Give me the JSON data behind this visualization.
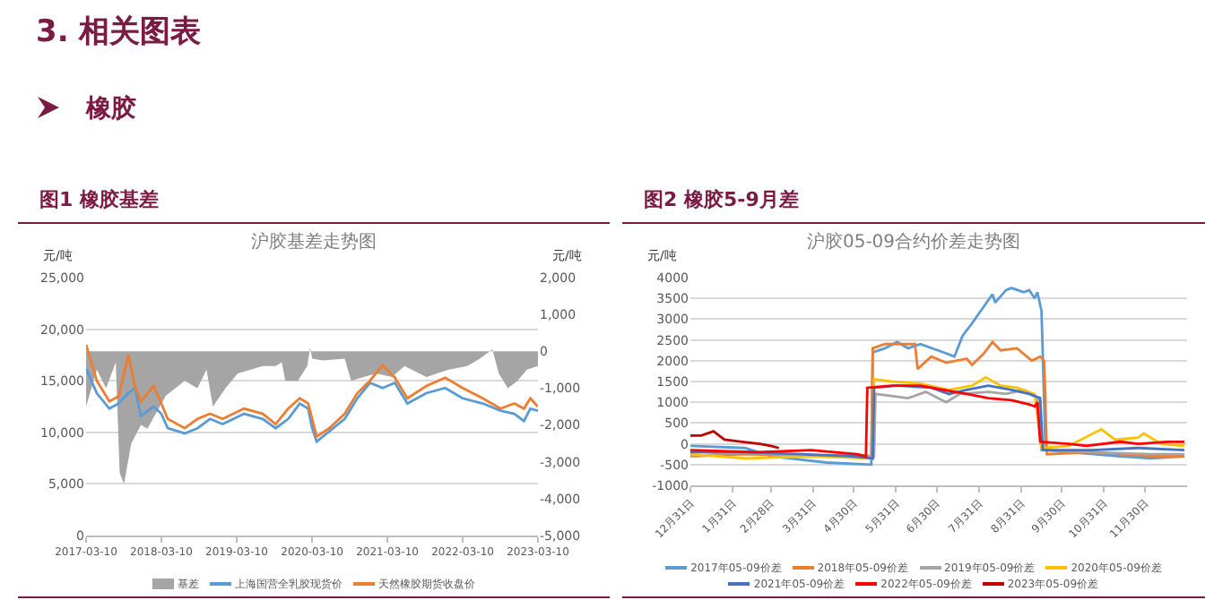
{
  "chart_data": [
    {
      "type": "line",
      "title": "沪胶基差走势图",
      "ylabel": "元/吨",
      "y2label": "元/吨",
      "annotations": [
        "3. 相关图表",
        "橡胶",
        "图1 橡胶基差"
      ],
      "xlim": [
        "2017-03-10",
        "2023-03-10"
      ],
      "xticks": [
        "2017-03-10",
        "2018-03-10",
        "2019-03-10",
        "2020-03-10",
        "2021-03-10",
        "2022-03-10",
        "2023-03-10"
      ],
      "ylim": [
        0,
        25000
      ],
      "yticks": [
        0,
        {
          "value": 5000,
          "label": "5,000"
        },
        {
          "value": 10000,
          "label": "10,000"
        },
        {
          "value": 15000,
          "label": "15,000"
        },
        {
          "value": 20000,
          "label": "20,000"
        },
        {
          "value": 25000,
          "label": "25,000"
        }
      ],
      "y2lim": [
        -5000,
        2000
      ],
      "y2ticks": [
        {
          "value": -5000,
          "label": "-5,000"
        },
        {
          "value": -4000,
          "label": "-4,000"
        },
        {
          "value": -3000,
          "label": "-3,000"
        },
        {
          "value": -2000,
          "label": "-2,000"
        },
        {
          "value": -1000,
          "label": "-1,000"
        },
        0,
        {
          "value": 1000,
          "label": "1,000"
        },
        {
          "value": 2000,
          "label": "2,000"
        }
      ],
      "grid": "y",
      "legend": "bottom",
      "series": [
        {
          "name": "基差",
          "type": "area",
          "axis": "y2",
          "color": "#a5a5a5",
          "x": [
            "2017-03-10",
            "2017-05-01",
            "2017-06-15",
            "2017-08-01",
            "2017-08-20",
            "2017-09-10",
            "2017-10-15",
            "2017-12-01",
            "2018-01-01",
            "2018-04-01",
            "2018-07-01",
            "2018-09-01",
            "2018-10-15",
            "2018-11-15",
            "2019-01-15",
            "2019-03-15",
            "2019-07-15",
            "2019-09-15",
            "2019-10-15",
            "2019-11-01",
            "2020-01-01",
            "2020-02-15",
            "2020-03-01",
            "2020-03-10",
            "2020-05-01",
            "2020-08-15",
            "2020-09-15",
            "2020-11-15",
            "2021-01-15",
            "2021-04-01",
            "2021-06-01",
            "2021-09-15",
            "2022-01-01",
            "2022-04-01",
            "2022-06-01",
            "2022-08-01",
            "2022-09-01",
            "2022-10-15",
            "2022-12-01",
            "2023-01-15",
            "2023-03-10"
          ],
          "values": [
            -1500,
            -500,
            -1000,
            -300,
            -3300,
            -3600,
            -2500,
            -2000,
            -2100,
            -1200,
            -800,
            -1000,
            -500,
            -1500,
            -1000,
            -600,
            -400,
            -400,
            -300,
            -800,
            -800,
            -400,
            100,
            -200,
            -250,
            -200,
            -800,
            -700,
            -600,
            -700,
            -400,
            -700,
            -500,
            -400,
            -200,
            50,
            -600,
            -1000,
            -800,
            -500,
            -400
          ]
        },
        {
          "name": "上海国营全乳胶现货价",
          "color": "#5b9bd5",
          "x": [
            "2017-03-10",
            "2017-05-01",
            "2017-07-01",
            "2017-08-15",
            "2017-10-01",
            "2017-11-01",
            "2017-12-01",
            "2018-02-01",
            "2018-03-10",
            "2018-04-10",
            "2018-07-01",
            "2018-09-01",
            "2018-11-01",
            "2019-01-01",
            "2019-04-15",
            "2019-07-15",
            "2019-09-15",
            "2019-11-15",
            "2020-01-10",
            "2020-02-20",
            "2020-03-10",
            "2020-04-01",
            "2020-06-01",
            "2020-08-15",
            "2020-10-15",
            "2020-12-15",
            "2021-02-15",
            "2021-04-15",
            "2021-06-15",
            "2021-09-15",
            "2021-12-15",
            "2022-03-10",
            "2022-06-15",
            "2022-09-10",
            "2022-11-15",
            "2023-01-01",
            "2023-02-01",
            "2023-03-10"
          ],
          "values": [
            16200,
            13800,
            12300,
            12800,
            13800,
            14300,
            11600,
            12500,
            11800,
            10400,
            9900,
            10400,
            11300,
            10800,
            11800,
            11300,
            10400,
            11300,
            12800,
            12300,
            10400,
            9100,
            10100,
            11300,
            13300,
            14800,
            14300,
            14800,
            12800,
            13800,
            14300,
            13300,
            12800,
            12100,
            11800,
            11100,
            12300,
            12100
          ]
        },
        {
          "name": "天然橡胶期货收盘价",
          "color": "#ed7d31",
          "x": [
            "2017-03-10",
            "2017-05-01",
            "2017-07-01",
            "2017-08-15",
            "2017-10-01",
            "2017-11-01",
            "2017-12-01",
            "2018-02-01",
            "2018-03-10",
            "2018-04-10",
            "2018-07-01",
            "2018-09-01",
            "2018-11-01",
            "2019-01-01",
            "2019-04-15",
            "2019-07-15",
            "2019-09-15",
            "2019-11-15",
            "2020-01-10",
            "2020-02-20",
            "2020-03-10",
            "2020-04-01",
            "2020-06-01",
            "2020-08-15",
            "2020-10-15",
            "2020-12-15",
            "2021-02-15",
            "2021-04-15",
            "2021-06-15",
            "2021-09-15",
            "2021-12-15",
            "2022-03-10",
            "2022-06-15",
            "2022-09-10",
            "2022-11-15",
            "2023-01-01",
            "2023-02-01",
            "2023-03-10"
          ],
          "values": [
            18500,
            15000,
            13000,
            13500,
            17500,
            14500,
            13000,
            14500,
            12800,
            11300,
            10400,
            11300,
            11800,
            11300,
            12300,
            11800,
            10800,
            12300,
            13300,
            12800,
            11300,
            9600,
            10400,
            11800,
            13800,
            15000,
            16500,
            15300,
            13300,
            14500,
            15300,
            14300,
            13300,
            12300,
            12800,
            12300,
            13300,
            12500
          ]
        }
      ]
    },
    {
      "type": "line",
      "title": "沪胶05-09合约价差走势图",
      "ylabel": "元/吨",
      "annotations": [
        "图2 橡胶5-9月差"
      ],
      "xlim": [
        "2022-12-31",
        "2023-12-31"
      ],
      "xticks": [
        {
          "value": "2022-12-31",
          "label": "12月31日"
        },
        {
          "value": "2023-01-31",
          "label": "1月31日"
        },
        {
          "value": "2023-02-28",
          "label": "2月28日"
        },
        {
          "value": "2023-03-31",
          "label": "3月31日"
        },
        {
          "value": "2023-04-30",
          "label": "4月30日"
        },
        {
          "value": "2023-05-31",
          "label": "5月31日"
        },
        {
          "value": "2023-06-30",
          "label": "6月30日"
        },
        {
          "value": "2023-07-31",
          "label": "7月31日"
        },
        {
          "value": "2023-08-31",
          "label": "8月31日"
        },
        {
          "value": "2023-09-30",
          "label": "9月30日"
        },
        {
          "value": "2023-10-31",
          "label": "10月31日"
        },
        {
          "value": "2023-11-30",
          "label": "11月30日"
        }
      ],
      "ylim": [
        -1000,
        4000
      ],
      "yticks": [
        -1000,
        -500,
        0,
        500,
        1000,
        1500,
        2000,
        2500,
        3000,
        3500,
        4000
      ],
      "grid": "y",
      "legend": "bottom",
      "series": [
        {
          "name": "2017年05-09价差",
          "color": "#5b9bd5",
          "x": [
            "2022-12-31",
            "2023-02-09",
            "2023-03-01",
            "2023-04-10",
            "2023-05-13",
            "2023-05-14",
            "2023-05-23",
            "2023-06-01",
            "2023-06-09",
            "2023-06-18",
            "2023-07-05",
            "2023-07-13",
            "2023-07-19",
            "2023-07-26",
            "2023-08-10",
            "2023-08-12",
            "2023-08-20",
            "2023-08-24",
            "2023-09-02",
            "2023-09-06",
            "2023-09-10",
            "2023-09-12",
            "2023-09-15",
            "2023-09-18",
            "2023-10-05",
            "2023-11-12",
            "2023-12-04",
            "2023-12-29"
          ],
          "values": [
            -50,
            -100,
            -300,
            -450,
            -500,
            2200,
            2300,
            2450,
            2300,
            2400,
            2200,
            2100,
            2600,
            2900,
            3600,
            3400,
            3700,
            3750,
            3650,
            3700,
            3500,
            3650,
            3200,
            -150,
            -200,
            -300,
            -350,
            -300
          ]
        },
        {
          "name": "2018年05-09价差",
          "color": "#ed7d31",
          "x": [
            "2022-12-31",
            "2023-02-09",
            "2023-04-10",
            "2023-05-13",
            "2023-05-14",
            "2023-05-23",
            "2023-06-14",
            "2023-06-16",
            "2023-06-26",
            "2023-07-07",
            "2023-07-22",
            "2023-07-26",
            "2023-08-03",
            "2023-08-10",
            "2023-08-16",
            "2023-08-28",
            "2023-09-08",
            "2023-09-14",
            "2023-09-17",
            "2023-09-19",
            "2023-10-22",
            "2023-12-04",
            "2023-12-29"
          ],
          "values": [
            -300,
            -250,
            -300,
            -350,
            2300,
            2400,
            2400,
            1800,
            2100,
            1950,
            2050,
            1900,
            2150,
            2450,
            2250,
            2300,
            2000,
            2100,
            2000,
            -250,
            -200,
            -300,
            -300
          ]
        },
        {
          "name": "2019年05-09价差",
          "color": "#a5a5a5",
          "x": [
            "2022-12-31",
            "2023-02-09",
            "2023-03-21",
            "2023-04-30",
            "2023-05-15",
            "2023-05-16",
            "2023-06-09",
            "2023-06-22",
            "2023-07-07",
            "2023-07-17",
            "2023-08-07",
            "2023-08-20",
            "2023-09-02",
            "2023-09-12",
            "2023-09-15",
            "2023-10-22",
            "2023-12-04",
            "2023-12-29"
          ],
          "values": [
            -300,
            -200,
            -300,
            -250,
            -300,
            1200,
            1100,
            1250,
            1000,
            1200,
            1250,
            1200,
            1300,
            1100,
            -150,
            -200,
            -250,
            -250
          ]
        },
        {
          "name": "2020年05-09价差",
          "color": "#ffc000",
          "x": [
            "2022-12-31",
            "2023-02-09",
            "2023-03-31",
            "2023-05-14",
            "2023-05-15",
            "2023-05-28",
            "2023-06-18",
            "2023-07-09",
            "2023-07-26",
            "2023-08-05",
            "2023-08-16",
            "2023-08-28",
            "2023-09-10",
            "2023-09-15",
            "2023-10-05",
            "2023-10-29",
            "2023-11-08",
            "2023-11-25",
            "2023-11-29",
            "2023-12-12",
            "2023-12-29"
          ],
          "values": [
            -250,
            -350,
            -300,
            -350,
            1550,
            1500,
            1450,
            1300,
            1400,
            1600,
            1400,
            1350,
            1200,
            -100,
            -50,
            350,
            100,
            150,
            250,
            0,
            -50
          ]
        },
        {
          "name": "2021年05-09价差",
          "color": "#4472c4",
          "x": [
            "2022-12-31",
            "2023-02-09",
            "2023-03-21",
            "2023-04-30",
            "2023-05-14",
            "2023-05-15",
            "2023-06-01",
            "2023-06-26",
            "2023-07-09",
            "2023-07-22",
            "2023-08-07",
            "2023-08-24",
            "2023-09-06",
            "2023-09-14",
            "2023-09-16",
            "2023-10-22",
            "2023-11-25",
            "2023-12-29"
          ],
          "values": [
            -200,
            -200,
            -250,
            -300,
            -350,
            1350,
            1400,
            1350,
            1200,
            1300,
            1400,
            1300,
            1200,
            1100,
            -150,
            -150,
            -100,
            -150
          ]
        },
        {
          "name": "2022年05-09价差",
          "color": "#ff0000",
          "x": [
            "2022-12-31",
            "2023-02-19",
            "2023-03-30",
            "2023-05-02",
            "2023-05-09",
            "2023-05-10",
            "2023-05-28",
            "2023-06-18",
            "2023-07-05",
            "2023-07-22",
            "2023-08-07",
            "2023-08-24",
            "2023-09-06",
            "2023-09-10",
            "2023-09-12",
            "2023-09-14",
            "2023-10-05",
            "2023-10-18",
            "2023-11-12",
            "2023-11-25",
            "2023-12-16",
            "2023-12-29"
          ],
          "values": [
            -150,
            -200,
            -150,
            -250,
            -300,
            1350,
            1400,
            1400,
            1300,
            1200,
            1100,
            1050,
            950,
            900,
            1000,
            50,
            0,
            -50,
            50,
            0,
            50,
            50
          ]
        },
        {
          "name": "2023年05-09价差",
          "color": "#c00000",
          "x": [
            "2022-12-31",
            "2023-01-08",
            "2023-01-17",
            "2023-01-25",
            "2023-02-07",
            "2023-02-20",
            "2023-02-28",
            "2023-03-06"
          ],
          "values": [
            200,
            200,
            300,
            100,
            50,
            0,
            -50,
            -100
          ]
        }
      ]
    }
  ]
}
